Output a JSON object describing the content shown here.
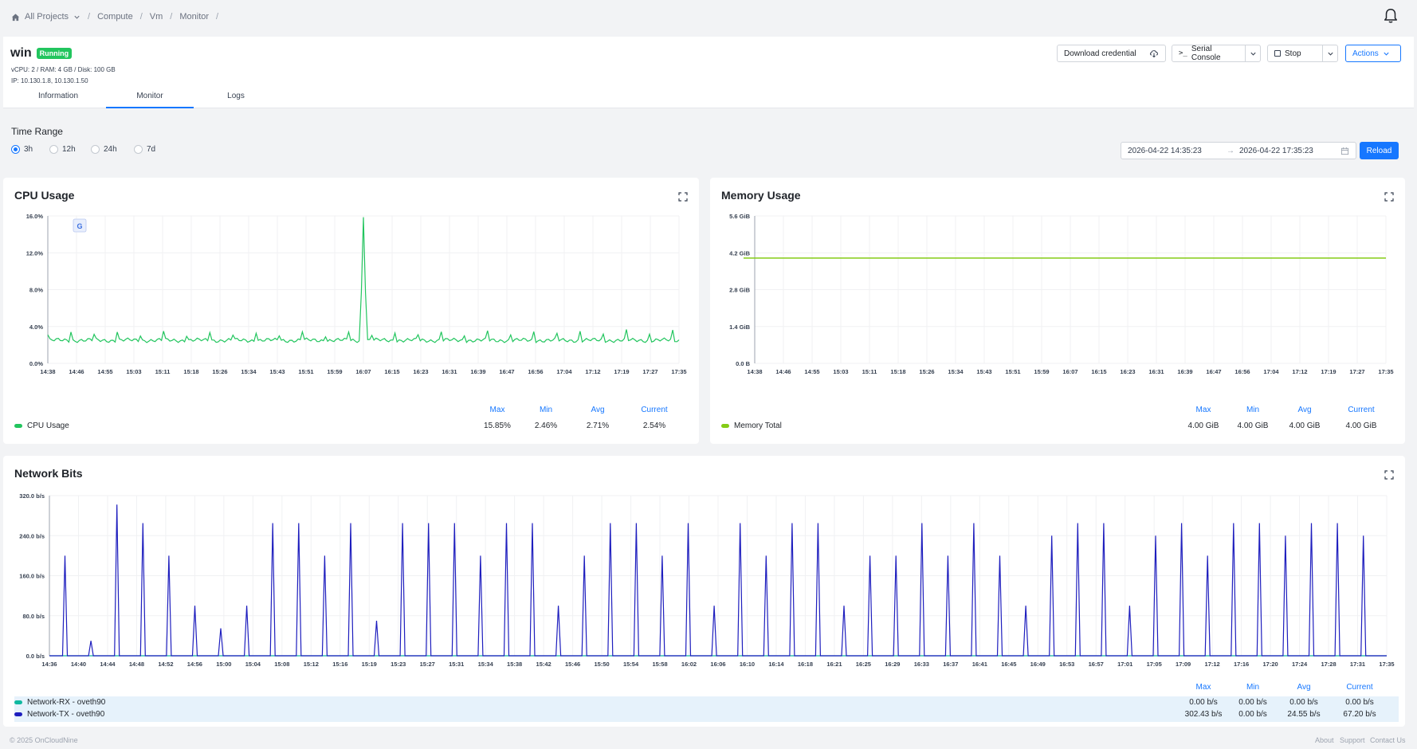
{
  "breadcrumb": {
    "home": "All Projects",
    "compute": "Compute",
    "vm": "Vm",
    "monitor": "Monitor",
    "sep": "/"
  },
  "vm": {
    "name": "win",
    "status": "Running",
    "specs": "vCPU: 2 / RAM: 4 GB / Disk: 100 GB",
    "ip": "IP: 10.130.1.8, 10.130.1.50"
  },
  "toolbar": {
    "download": "Download credential",
    "console": "Serial Console",
    "stop": "Stop",
    "actions": "Actions"
  },
  "tabs": [
    "Information",
    "Monitor",
    "Logs"
  ],
  "time_range": {
    "label": "Time Range",
    "options": [
      "3h",
      "12h",
      "24h",
      "7d"
    ],
    "selected": "3h",
    "start": "2026-04-22 14:35:23",
    "arrow": "→",
    "end": "2026-04-22 17:35:23",
    "reload": "Reload"
  },
  "stats_headers": [
    "Max",
    "Min",
    "Avg",
    "Current"
  ],
  "cpu": {
    "title": "CPU Usage",
    "legend": "CPU Usage",
    "color": "#22c55e",
    "stats": [
      "15.85%",
      "2.46%",
      "2.71%",
      "2.54%"
    ]
  },
  "memory": {
    "title": "Memory Usage",
    "legend": "Memory Total",
    "color": "#84cc16",
    "stats": [
      "4.00 GiB",
      "4.00 GiB",
      "4.00 GiB",
      "4.00 GiB"
    ]
  },
  "network": {
    "title": "Network Bits",
    "rx": {
      "legend": "Network-RX - oveth90",
      "color": "#10b9a0",
      "stats": [
        "0.00 b/s",
        "0.00 b/s",
        "0.00 b/s",
        "0.00 b/s"
      ]
    },
    "tx": {
      "legend": "Network-TX - oveth90",
      "color": "#1e1ebe",
      "stats": [
        "302.43 b/s",
        "0.00 b/s",
        "24.55 b/s",
        "67.20 b/s"
      ]
    }
  },
  "footer": {
    "copyright": "© 2025 OnCloudNine",
    "about": "About",
    "support": "Support",
    "contact": "Contact Us"
  },
  "chart_data": [
    {
      "type": "line",
      "title": "CPU Usage",
      "x": [
        "14:38",
        "14:46",
        "14:55",
        "15:03",
        "15:11",
        "15:18",
        "15:26",
        "15:34",
        "15:43",
        "15:51",
        "15:59",
        "16:07",
        "16:15",
        "16:23",
        "16:31",
        "16:39",
        "16:47",
        "16:56",
        "17:04",
        "17:12",
        "17:19",
        "17:27",
        "17:35"
      ],
      "yticks": [
        "0.0%",
        "4.0%",
        "8.0%",
        "12.0%",
        "16.0%"
      ],
      "ylim": [
        0,
        16
      ],
      "series": [
        {
          "name": "CPU Usage",
          "baseline": 2.5,
          "spike": {
            "x": "16:07",
            "y": 15.85
          }
        }
      ]
    },
    {
      "type": "line",
      "title": "Memory Usage",
      "x": [
        "14:38",
        "14:46",
        "14:55",
        "15:03",
        "15:11",
        "15:18",
        "15:26",
        "15:34",
        "15:43",
        "15:51",
        "15:59",
        "16:07",
        "16:15",
        "16:23",
        "16:31",
        "16:39",
        "16:47",
        "16:56",
        "17:04",
        "17:12",
        "17:19",
        "17:27",
        "17:35"
      ],
      "yticks": [
        "0.0 B",
        "1.4 GiB",
        "2.8 GiB",
        "4.2 GiB",
        "5.6 GiB"
      ],
      "ylim": [
        0,
        5.6
      ],
      "series": [
        {
          "name": "Memory Total",
          "value": 4.0
        }
      ]
    },
    {
      "type": "line",
      "title": "Network Bits",
      "x": [
        "14:36",
        "14:40",
        "14:44",
        "14:48",
        "14:52",
        "14:56",
        "15:00",
        "15:04",
        "15:08",
        "15:12",
        "15:16",
        "15:19",
        "15:23",
        "15:27",
        "15:31",
        "15:34",
        "15:38",
        "15:42",
        "15:46",
        "15:50",
        "15:54",
        "15:58",
        "16:02",
        "16:06",
        "16:10",
        "16:14",
        "16:18",
        "16:21",
        "16:25",
        "16:29",
        "16:33",
        "16:37",
        "16:41",
        "16:45",
        "16:49",
        "16:53",
        "16:57",
        "17:01",
        "17:05",
        "17:09",
        "17:12",
        "17:16",
        "17:20",
        "17:24",
        "17:28",
        "17:31",
        "17:35"
      ],
      "yticks": [
        "0.0 b/s",
        "80.0 b/s",
        "160.0 b/s",
        "240.0 b/s",
        "320.0 b/s"
      ],
      "ylim": [
        0,
        320
      ],
      "series": [
        {
          "name": "Network-RX - oveth90",
          "value": 0
        },
        {
          "name": "Network-TX - oveth90",
          "peaks": [
            200,
            30,
            302,
            265,
            200,
            100,
            55,
            100,
            265,
            265,
            200,
            265,
            70,
            265,
            265,
            265,
            200,
            265,
            265,
            100,
            200,
            265,
            265,
            200,
            265,
            100,
            265,
            200,
            265,
            265,
            100,
            200,
            200,
            265,
            200,
            265,
            200,
            100,
            240,
            265,
            265,
            100,
            240,
            265,
            200,
            265,
            265,
            240,
            265,
            265,
            240
          ]
        }
      ]
    }
  ]
}
